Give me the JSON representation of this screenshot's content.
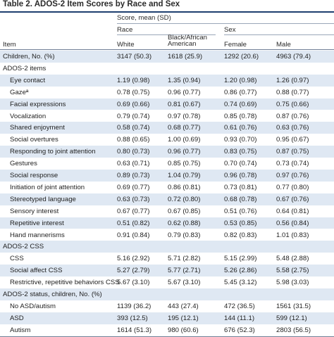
{
  "title": "Table 2. ADOS-2 Item Scores by Race and Sex",
  "header": {
    "item_label": "Item",
    "score_label": "Score, mean (SD)",
    "race_label": "Race",
    "sex_label": "Sex",
    "columns": [
      "White",
      "Black/African American",
      "Female",
      "Male"
    ]
  },
  "rows": [
    {
      "type": "data",
      "label": "Children, No. (%)",
      "values": [
        "3147 (50.3)",
        "1618 (25.9)",
        "1292 (20.6)",
        "4963 (79.4)"
      ]
    },
    {
      "type": "section",
      "label": "ADOS-2 items"
    },
    {
      "type": "item",
      "label": "Eye contact",
      "values": [
        "1.19 (0.98)",
        "1.35 (0.94)",
        "1.20 (0.98)",
        "1.26 (0.97)"
      ]
    },
    {
      "type": "item",
      "label": "Gazeª",
      "values": [
        "0.78 (0.75)",
        "0.96 (0.77)",
        "0.86 (0.77)",
        "0.88 (0.77)"
      ]
    },
    {
      "type": "item",
      "label": "Facial expressions",
      "values": [
        "0.69 (0.66)",
        "0.81 (0.67)",
        "0.74 (0.69)",
        "0.75 (0.66)"
      ]
    },
    {
      "type": "item",
      "label": "Vocalization",
      "values": [
        "0.79 (0.74)",
        "0.97 (0.78)",
        "0.85 (0.78)",
        "0.87 (0.76)"
      ]
    },
    {
      "type": "item",
      "label": "Shared enjoyment",
      "values": [
        "0.58 (0.74)",
        "0.68 (0.77)",
        "0.61 (0.76)",
        "0.63 (0.76)"
      ]
    },
    {
      "type": "item",
      "label": "Social overtures",
      "values": [
        "0.88 (0.65)",
        "1.00 (0.69)",
        "0.93 (0.70)",
        "0.95 (0.67)"
      ]
    },
    {
      "type": "item",
      "label": "Responding to joint attention",
      "values": [
        "0.80 (0.73)",
        "0.96 (0.77)",
        "0.83 (0.75)",
        "0.87 (0.75)"
      ]
    },
    {
      "type": "item",
      "label": "Gestures",
      "values": [
        "0.63 (0.71)",
        "0.85 (0.75)",
        "0.70 (0.74)",
        "0.73 (0.74)"
      ]
    },
    {
      "type": "item",
      "label": "Social response",
      "values": [
        "0.89 (0.73)",
        "1.04 (0.79)",
        "0.96 (0.78)",
        "0.97 (0.76)"
      ]
    },
    {
      "type": "item",
      "label": "Initiation of joint attention",
      "values": [
        "0.69 (0.77)",
        "0.86 (0.81)",
        "0.73 (0.81)",
        "0.77 (0.80)"
      ]
    },
    {
      "type": "item",
      "label": "Stereotyped language",
      "values": [
        "0.63 (0.73)",
        "0.72 (0.80)",
        "0.68 (0.78)",
        "0.67 (0.76)"
      ]
    },
    {
      "type": "item",
      "label": "Sensory interest",
      "values": [
        "0.67 (0.77)",
        "0.67 (0.85)",
        "0.51 (0.76)",
        "0.64 (0.81)"
      ]
    },
    {
      "type": "item",
      "label": "Repetitive interest",
      "values": [
        "0.51 (0.82)",
        "0.62 (0.88)",
        "0.53 (0.85)",
        "0.56 (0.84)"
      ]
    },
    {
      "type": "item",
      "label": "Hand mannerisms",
      "values": [
        "0.91 (0.84)",
        "0.79 (0.83)",
        "0.82 (0.83)",
        "1.01 (0.83)"
      ]
    },
    {
      "type": "section",
      "label": "ADOS-2 CSS"
    },
    {
      "type": "item",
      "label": "CSS",
      "values": [
        "5.16 (2.92)",
        "5.71 (2.82)",
        "5.15 (2.99)",
        "5.48 (2.88)"
      ]
    },
    {
      "type": "item",
      "label": "Social affect CSS",
      "values": [
        "5.27 (2.79)",
        "5.77 (2.71)",
        "5.26 (2.86)",
        "5.58 (2.75)"
      ]
    },
    {
      "type": "item",
      "label": "Restrictive, repetitive behaviors CSS",
      "values": [
        "5.67 (3.10)",
        "5.67 (3.10)",
        "5.45 (3.12)",
        "5.98 (3.03)"
      ]
    },
    {
      "type": "section",
      "label": "ADOS-2 status, children, No. (%)"
    },
    {
      "type": "item",
      "label": "No ASD/autism",
      "values": [
        "1139 (36.2)",
        "443 (27.4)",
        "472 (36.5)",
        "1561 (31.5)"
      ]
    },
    {
      "type": "item",
      "label": "ASD",
      "values": [
        "393 (12.5)",
        "195 (12.1)",
        "144 (11.1)",
        "599 (12.1)"
      ]
    },
    {
      "type": "item",
      "label": "Autism",
      "values": [
        "1614 (51.3)",
        "980 (60.6)",
        "676 (52.3)",
        "2803 (56.5)"
      ]
    }
  ]
}
